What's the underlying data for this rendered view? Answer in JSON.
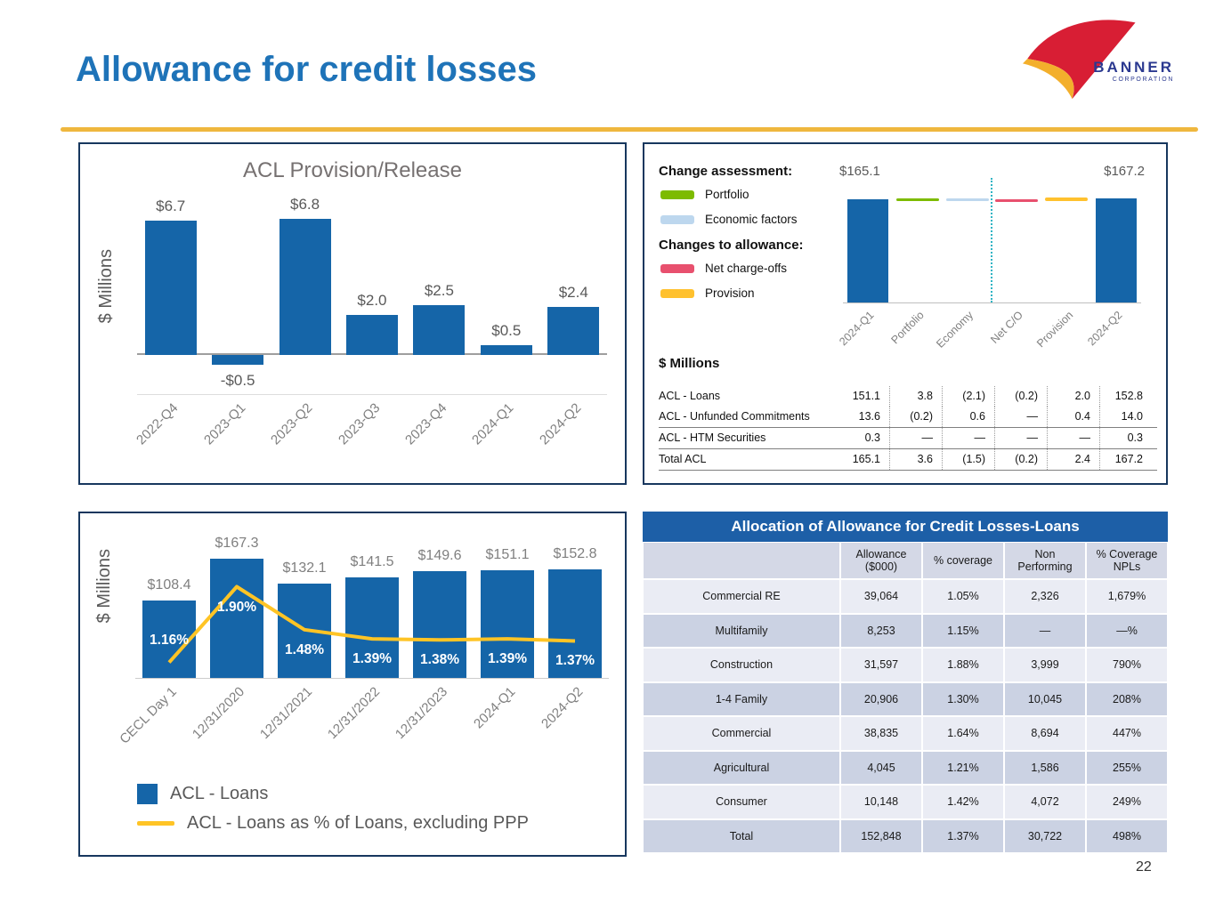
{
  "slide": {
    "title": "Allowance for credit losses",
    "page_number": "22",
    "logo": {
      "name": "BANNER",
      "subtext": "CORPORATION"
    }
  },
  "colors": {
    "accent_blue": "#1E73B8",
    "accent_gold": "#EFB73E",
    "navy": "#17375E",
    "bar_blue": "#1565A8",
    "table_blue": "#1D5FA7",
    "line_gold": "#FFC425",
    "teal": "#2FB4C4",
    "head_bg": "#D4D8E6",
    "row_light": "#EAECF4",
    "row_dark": "#CBD2E3"
  },
  "chart_data": [
    {
      "id": "acl_provision",
      "type": "bar",
      "title": "ACL Provision/Release",
      "xlabel": "",
      "ylabel": "$ Millions",
      "ylim": [
        -1,
        7.5
      ],
      "grid": false,
      "categories": [
        "2022-Q4",
        "2023-Q1",
        "2023-Q2",
        "2023-Q3",
        "2023-Q4",
        "2024-Q1",
        "2024-Q2"
      ],
      "values": [
        6.7,
        -0.5,
        6.8,
        2.0,
        2.5,
        0.5,
        2.4
      ],
      "labels": [
        "$6.7",
        "-$0.5",
        "$6.8",
        "$2.0",
        "$2.5",
        "$0.5",
        "$2.4"
      ]
    },
    {
      "id": "acl_waterfall",
      "type": "waterfall",
      "legend_groups": [
        {
          "title": "Change assessment:",
          "items": [
            {
              "label": "Portfolio",
              "color": "#7DBB00"
            },
            {
              "label": "Economic factors",
              "color": "#BDD7EE"
            }
          ]
        },
        {
          "title": "Changes to allowance:",
          "items": [
            {
              "label": "Net charge-offs",
              "color": "#E8506E"
            },
            {
              "label": "Provision",
              "color": "#FFC12E"
            }
          ]
        }
      ],
      "categories": [
        "2024-Q1",
        "Portfolio",
        "Economy",
        "Net C/O",
        "Provision",
        "2024-Q2"
      ],
      "start_label": "$165.1",
      "end_label": "$167.2",
      "start_value": 165.1,
      "end_value": 167.2,
      "steps": [
        3.6,
        -1.5,
        -0.2,
        2.4
      ],
      "step_colors": [
        "#7DBB00",
        "#BDD7EE",
        "#E8506E",
        "#FFC12E"
      ],
      "table": {
        "units": "$ Millions",
        "rows": [
          {
            "label": "ACL - Loans",
            "values": [
              "151.1",
              "3.8",
              "(2.1)",
              "(0.2)",
              "2.0",
              "152.8"
            ]
          },
          {
            "label": "ACL - Unfunded Commitments",
            "values": [
              "13.6",
              "(0.2)",
              "0.6",
              "—",
              "0.4",
              "14.0"
            ]
          },
          {
            "label": "ACL - HTM Securities",
            "values": [
              "0.3",
              "—",
              "—",
              "—",
              "—",
              "0.3"
            ]
          },
          {
            "label": "Total ACL",
            "values": [
              "165.1",
              "3.6",
              "(1.5)",
              "(0.2)",
              "2.4",
              "167.2"
            ]
          }
        ]
      }
    },
    {
      "id": "acl_loans_history",
      "type": "bar+line",
      "xlabel": "",
      "ylabel": "$ Millions",
      "grid": false,
      "legend_position": "bottom",
      "categories": [
        "CECL Day 1",
        "12/31/2020",
        "12/31/2021",
        "12/31/2022",
        "12/31/2023",
        "2024-Q1",
        "2024-Q2"
      ],
      "series": [
        {
          "name": "ACL - Loans",
          "type": "bar",
          "values": [
            108.4,
            167.3,
            132.1,
            141.5,
            149.6,
            151.1,
            152.8
          ],
          "labels": [
            "$108.4",
            "$167.3",
            "$132.1",
            "$141.5",
            "$149.6",
            "$151.1",
            "$152.8"
          ]
        },
        {
          "name": "ACL - Loans as % of Loans, excluding PPP",
          "type": "line",
          "color": "#FFC425",
          "values": [
            1.16,
            1.9,
            1.48,
            1.39,
            1.38,
            1.39,
            1.37
          ],
          "labels": [
            "1.16%",
            "1.90%",
            "1.48%",
            "1.39%",
            "1.38%",
            "1.39%",
            "1.37%"
          ]
        }
      ]
    },
    {
      "id": "allocation_table",
      "type": "table",
      "title": "Allocation of Allowance for Credit Losses-Loans",
      "columns": [
        "",
        "Allowance ($000)",
        "% coverage",
        "Non Performing",
        "% Coverage NPLs"
      ],
      "rows": [
        [
          "Commercial RE",
          "39,064",
          "1.05%",
          "2,326",
          "1,679%"
        ],
        [
          "Multifamily",
          "8,253",
          "1.15%",
          "—",
          "—%"
        ],
        [
          "Construction",
          "31,597",
          "1.88%",
          "3,999",
          "790%"
        ],
        [
          "1-4 Family",
          "20,906",
          "1.30%",
          "10,045",
          "208%"
        ],
        [
          "Commercial",
          "38,835",
          "1.64%",
          "8,694",
          "447%"
        ],
        [
          "Agricultural",
          "4,045",
          "1.21%",
          "1,586",
          "255%"
        ],
        [
          "Consumer",
          "10,148",
          "1.42%",
          "4,072",
          "249%"
        ],
        [
          "Total",
          "152,848",
          "1.37%",
          "30,722",
          "498%"
        ]
      ]
    }
  ]
}
